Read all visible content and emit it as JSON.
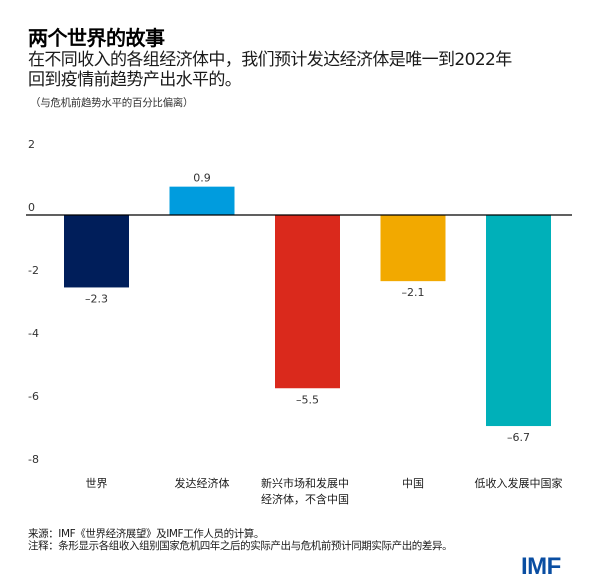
{
  "header": {
    "title": "两个世界的故事",
    "subtitle_lines": [
      "在不同收入的各组经济体中，我们预计发达经济体是唯一到2022年",
      "回到疫情前趋势产出水平的。"
    ],
    "units": "（与危机前趋势水平的百分比偏离）"
  },
  "chart_data": {
    "type": "bar",
    "title": "两个世界的故事",
    "subtitle": "在不同收入的各组经济体中，我们预计发达经济体是唯一到2022年回到疫情前趋势产出水平的。",
    "xlabel": "",
    "ylabel": "（与危机前趋势水平的百分比偏离）",
    "categories": [
      [
        "世界"
      ],
      [
        "发达经济体"
      ],
      [
        "新兴市场和发展中",
        "经济体，不含中国"
      ],
      [
        "中国"
      ],
      [
        "低收入发展中国家"
      ]
    ],
    "values": [
      -2.3,
      0.9,
      -5.5,
      -2.1,
      -6.7
    ],
    "value_labels": [
      "–2.3",
      "0.9",
      "–5.5",
      "–2.1",
      "–6.7"
    ],
    "colors": [
      "#001e5a",
      "#009cde",
      "#da291c",
      "#f2a900",
      "#00b0b9"
    ],
    "ylim": [
      -8,
      2
    ],
    "yticks": [
      2,
      0,
      -2,
      -4,
      -6,
      -8
    ],
    "ytick_labels": [
      "2",
      "0",
      "-2",
      "-4",
      "-6",
      "-8"
    ],
    "grid": false,
    "legend": "none"
  },
  "footer": {
    "source": "来源：IMF《世界经济展望》及IMF工作人员的计算。",
    "note": "注释：条形显示各组收入组别国家危机四年之后的实际产出与危机前预计同期实际产出的差异。"
  },
  "logo": {
    "text": "IMF",
    "color": "#0a4ea2"
  }
}
